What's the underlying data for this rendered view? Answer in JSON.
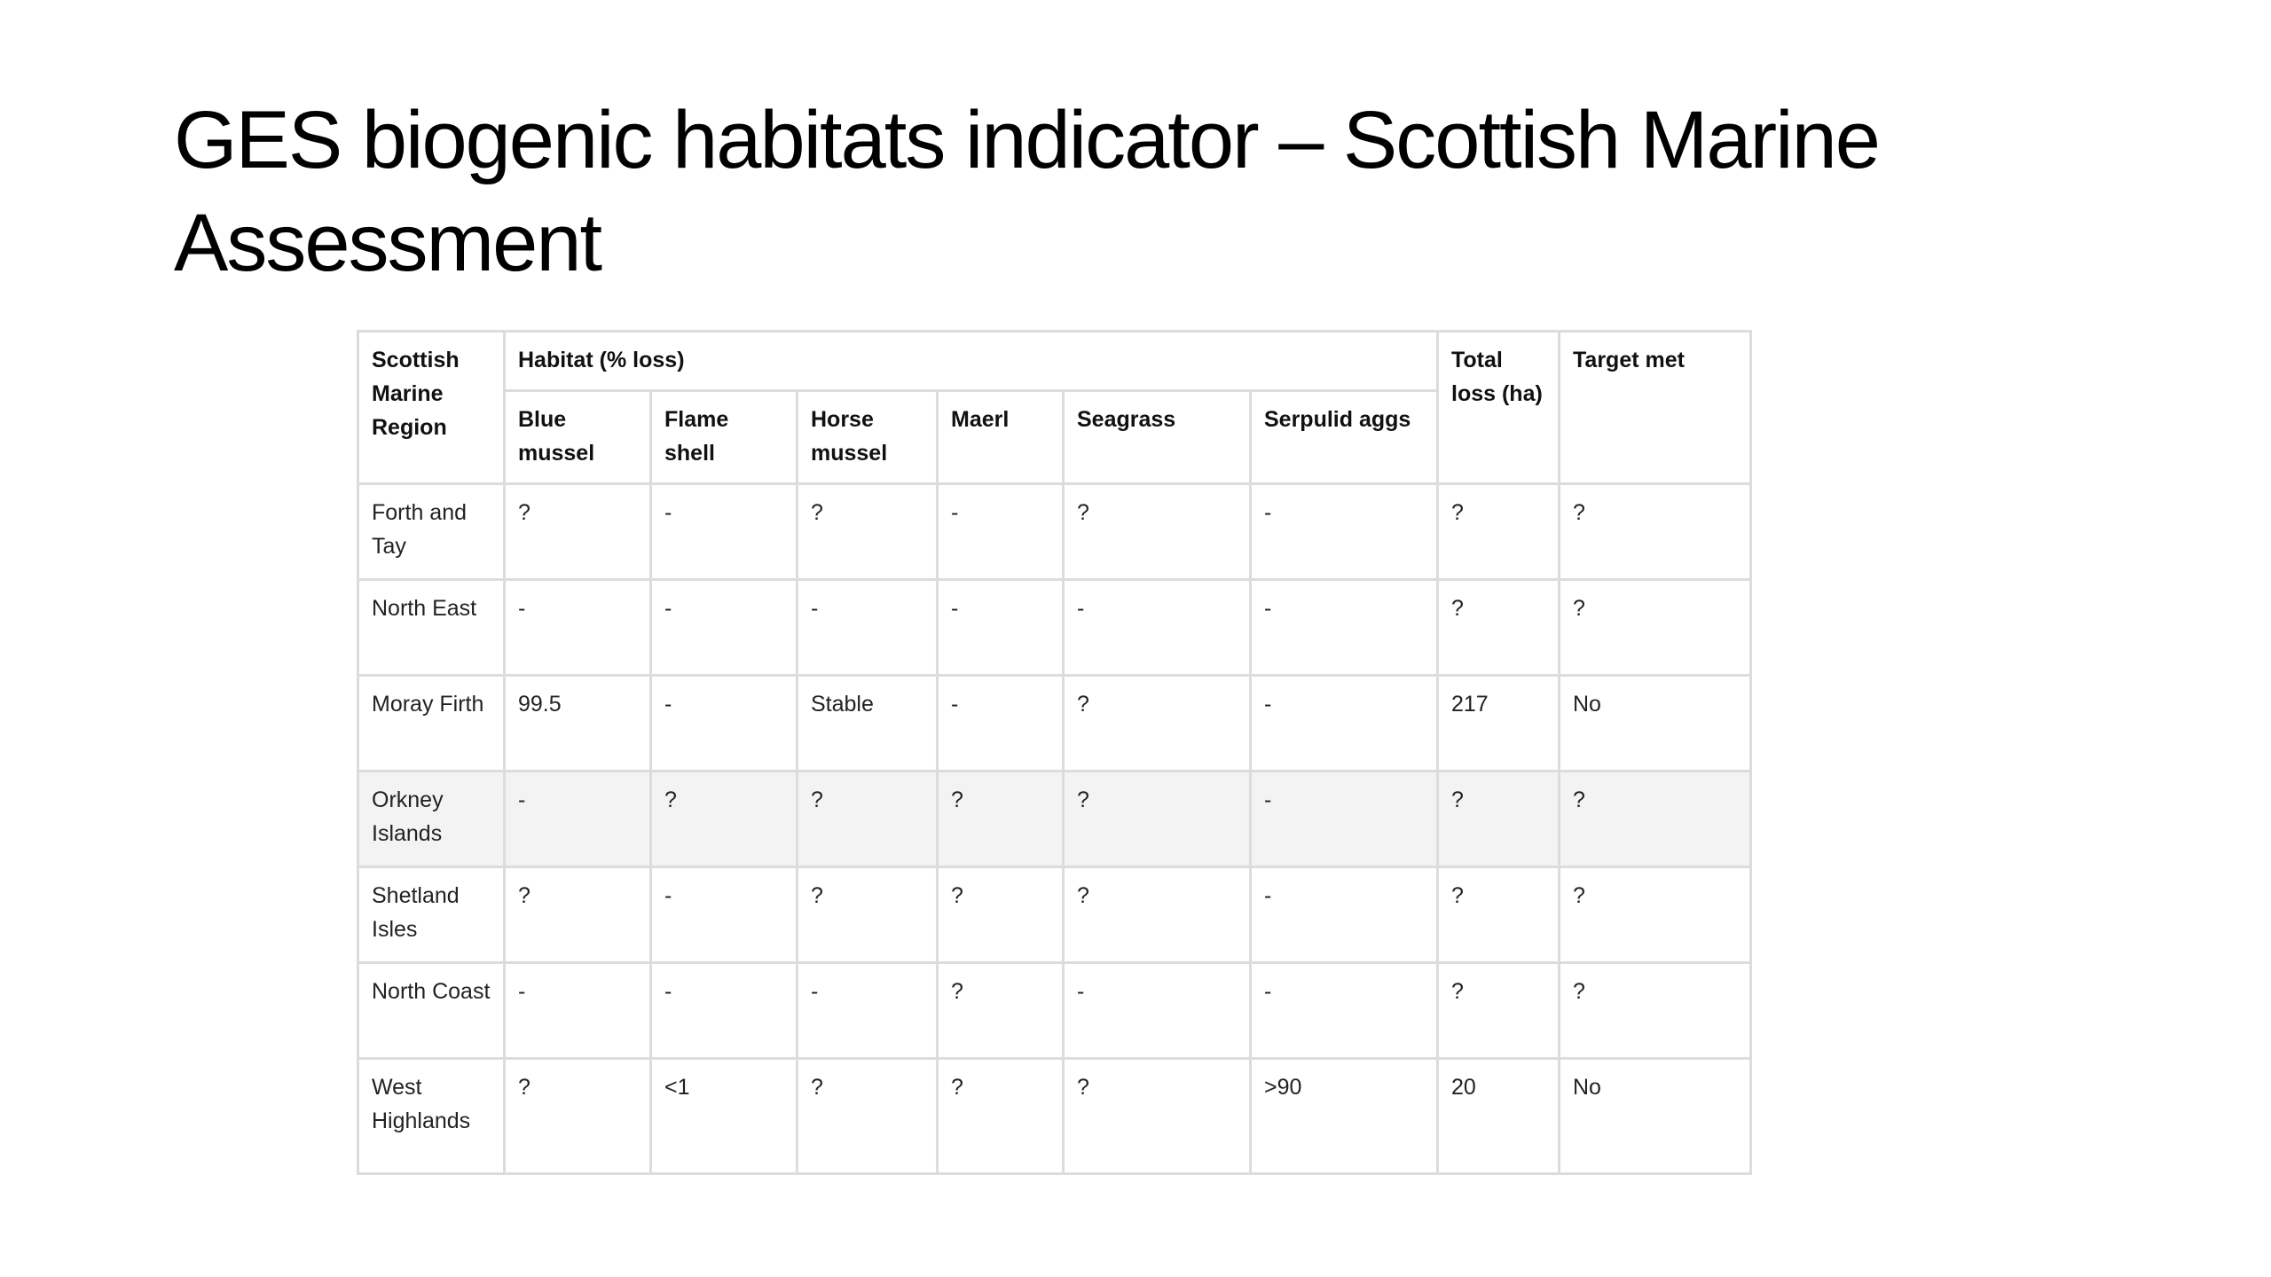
{
  "slide": {
    "title": "GES biogenic habitats indicator – Scottish Marine Assessment"
  },
  "table": {
    "headers": {
      "region": "Scottish Marine Region",
      "habitat_group": "Habitat (% loss)",
      "total_loss": "Total loss (ha)",
      "target_met": "Target met",
      "habitats": [
        "Blue mussel",
        "Flame shell",
        "Horse mussel",
        "Maerl",
        "Seagrass",
        "Serpulid aggs"
      ]
    },
    "rows": [
      {
        "region": "Forth and Tay",
        "values": [
          "?",
          "-",
          "?",
          "-",
          "?",
          "-"
        ],
        "total_loss": "?",
        "target_met": "?"
      },
      {
        "region": "North East",
        "values": [
          "-",
          "-",
          "-",
          "-",
          "-",
          "-"
        ],
        "total_loss": "?",
        "target_met": "?"
      },
      {
        "region": "Moray Firth",
        "values": [
          "99.5",
          "-",
          "Stable",
          "-",
          "?",
          "-"
        ],
        "total_loss": "217",
        "target_met": "No"
      },
      {
        "region": "Orkney Islands",
        "values": [
          "-",
          "?",
          "?",
          "?",
          "?",
          "-"
        ],
        "total_loss": "?",
        "target_met": "?"
      },
      {
        "region": "Shetland Isles",
        "values": [
          "?",
          "-",
          "?",
          "?",
          "?",
          "-"
        ],
        "total_loss": "?",
        "target_met": "?"
      },
      {
        "region": "North Coast",
        "values": [
          "-",
          "-",
          "-",
          "?",
          "-",
          "-"
        ],
        "total_loss": "?",
        "target_met": "?"
      },
      {
        "region": "West Highlands",
        "values": [
          "?",
          "<1",
          "?",
          "?",
          "?",
          ">90"
        ],
        "total_loss": "20",
        "target_met": "No"
      }
    ]
  }
}
